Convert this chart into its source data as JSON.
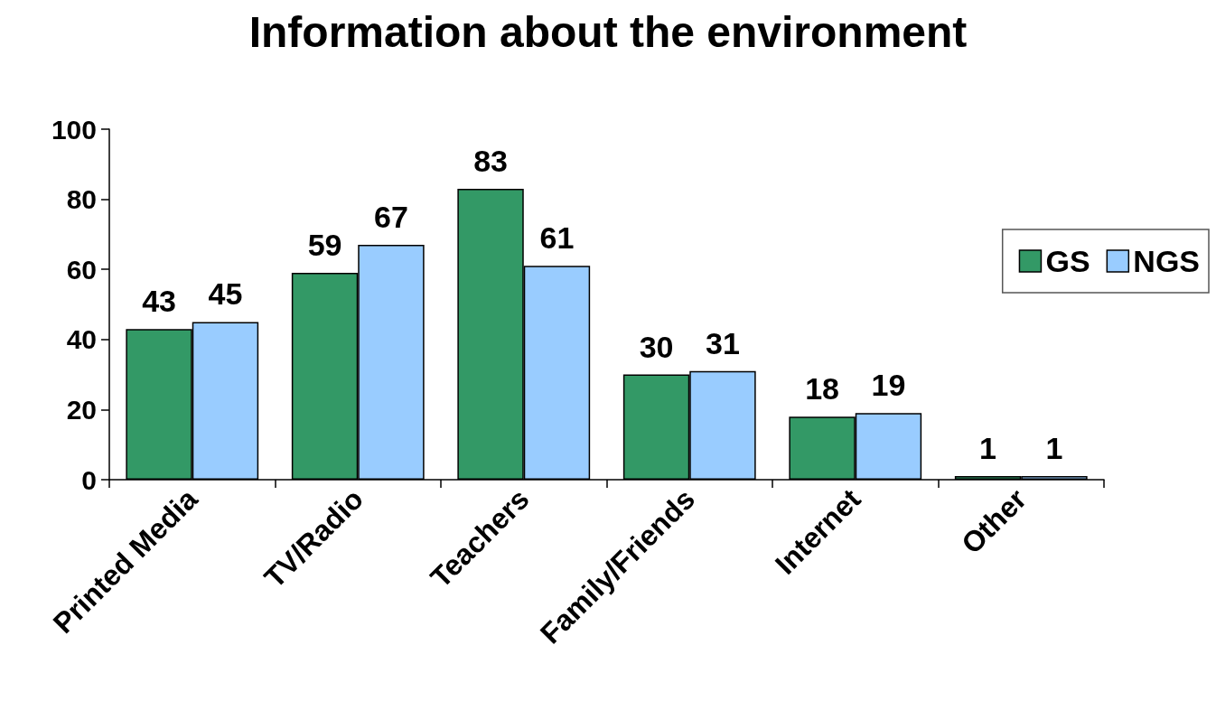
{
  "chart_data": {
    "type": "bar",
    "title": "Information about the environment",
    "categories": [
      "Printed Media",
      "TV/Radio",
      "Teachers",
      "Family/Friends",
      "Internet",
      "Other"
    ],
    "series": [
      {
        "name": "GS",
        "color": "#339966",
        "values": [
          43,
          59,
          83,
          30,
          18,
          1
        ]
      },
      {
        "name": "NGS",
        "color": "#99ccff",
        "values": [
          45,
          67,
          61,
          31,
          19,
          1
        ]
      }
    ],
    "ylim": [
      0,
      100
    ],
    "yticks": [
      0,
      20,
      40,
      60,
      80,
      100
    ],
    "legend": "right",
    "data_labels": true
  }
}
